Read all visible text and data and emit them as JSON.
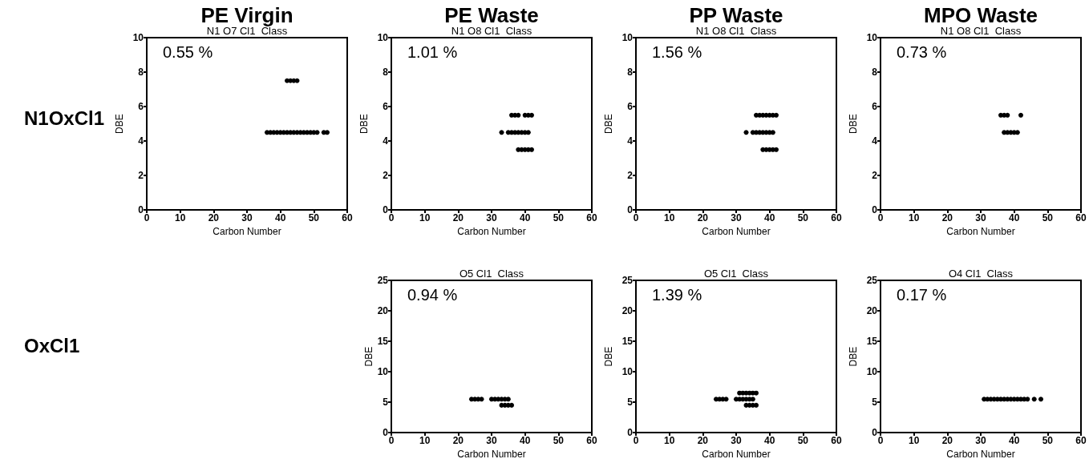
{
  "chart_data": [
    {
      "type": "scatter",
      "marker": "circle",
      "title": "PE Virgin",
      "subtitle": "N1 O7 Cl1  Class",
      "annotations": [
        "0.55 %",
        "N1OxCl1"
      ],
      "xlabel": "Carbon Number",
      "ylabel": "DBE",
      "xlim": [
        0,
        60
      ],
      "xticks": [
        0,
        10,
        20,
        30,
        40,
        50,
        60
      ],
      "ylim": [
        0,
        10
      ],
      "yticks": [
        0,
        2,
        4,
        6,
        8,
        10
      ],
      "series": [
        {
          "color": "#000000",
          "x": [
            36,
            37,
            38,
            39,
            40,
            41,
            42,
            43,
            44,
            45,
            46,
            47,
            48,
            49,
            50,
            51,
            53,
            54,
            42,
            43,
            44,
            45
          ],
          "values": [
            4.5,
            4.5,
            4.5,
            4.5,
            4.5,
            4.5,
            4.5,
            4.5,
            4.5,
            4.5,
            4.5,
            4.5,
            4.5,
            4.5,
            4.5,
            4.5,
            4.5,
            4.5,
            7.5,
            7.5,
            7.5,
            7.5
          ]
        }
      ]
    },
    {
      "type": "scatter",
      "marker": "circle",
      "title": "PE Waste",
      "subtitle": "N1 O8 Cl1  Class",
      "annotations": [
        "1.01 %"
      ],
      "xlabel": "Carbon Number",
      "ylabel": "DBE",
      "xlim": [
        0,
        60
      ],
      "xticks": [
        0,
        10,
        20,
        30,
        40,
        50,
        60
      ],
      "ylim": [
        0,
        10
      ],
      "yticks": [
        0,
        2,
        4,
        6,
        8,
        10
      ],
      "series": [
        {
          "color": "#000000",
          "x": [
            36,
            37,
            38,
            40,
            41,
            42,
            33,
            35,
            36,
            37,
            38,
            39,
            40,
            41,
            38,
            39,
            40,
            41,
            42
          ],
          "values": [
            5.5,
            5.5,
            5.5,
            5.5,
            5.5,
            5.5,
            4.5,
            4.5,
            4.5,
            4.5,
            4.5,
            4.5,
            4.5,
            4.5,
            3.5,
            3.5,
            3.5,
            3.5,
            3.5
          ]
        }
      ]
    },
    {
      "type": "scatter",
      "marker": "circle",
      "title": "PP Waste",
      "subtitle": "N1 O8 Cl1  Class",
      "annotations": [
        "1.56 %"
      ],
      "xlabel": "Carbon Number",
      "ylabel": "DBE",
      "xlim": [
        0,
        60
      ],
      "xticks": [
        0,
        10,
        20,
        30,
        40,
        50,
        60
      ],
      "ylim": [
        0,
        10
      ],
      "yticks": [
        0,
        2,
        4,
        6,
        8,
        10
      ],
      "series": [
        {
          "color": "#000000",
          "x": [
            36,
            37,
            38,
            39,
            40,
            41,
            42,
            33,
            35,
            36,
            37,
            38,
            39,
            40,
            41,
            38,
            39,
            40,
            41,
            42
          ],
          "values": [
            5.5,
            5.5,
            5.5,
            5.5,
            5.5,
            5.5,
            5.5,
            4.5,
            4.5,
            4.5,
            4.5,
            4.5,
            4.5,
            4.5,
            4.5,
            3.5,
            3.5,
            3.5,
            3.5,
            3.5
          ]
        }
      ]
    },
    {
      "type": "scatter",
      "marker": "circle",
      "title": "MPO Waste",
      "subtitle": "N1 O8 Cl1  Class",
      "annotations": [
        "0.73 %"
      ],
      "xlabel": "Carbon Number",
      "ylabel": "DBE",
      "xlim": [
        0,
        60
      ],
      "xticks": [
        0,
        10,
        20,
        30,
        40,
        50,
        60
      ],
      "ylim": [
        0,
        10
      ],
      "yticks": [
        0,
        2,
        4,
        6,
        8,
        10
      ],
      "series": [
        {
          "color": "#000000",
          "x": [
            36,
            37,
            38,
            42,
            37,
            38,
            39,
            40,
            41
          ],
          "values": [
            5.5,
            5.5,
            5.5,
            5.5,
            4.5,
            4.5,
            4.5,
            4.5,
            4.5
          ]
        }
      ]
    },
    {
      "type": "scatter",
      "marker": "circle",
      "subtitle": "O5 Cl1  Class",
      "annotations": [
        "0.94 %",
        "OxCl1"
      ],
      "xlabel": "Carbon Number",
      "ylabel": "DBE",
      "xlim": [
        0,
        60
      ],
      "xticks": [
        0,
        10,
        20,
        30,
        40,
        50,
        60
      ],
      "ylim": [
        0,
        25
      ],
      "yticks": [
        0,
        5,
        10,
        15,
        20,
        25
      ],
      "series": [
        {
          "color": "#000000",
          "x": [
            24,
            25,
            26,
            27,
            30,
            31,
            32,
            33,
            34,
            35,
            33,
            34,
            35,
            36
          ],
          "values": [
            5.5,
            5.5,
            5.5,
            5.5,
            5.5,
            5.5,
            5.5,
            5.5,
            5.5,
            5.5,
            4.5,
            4.5,
            4.5,
            4.5
          ]
        }
      ]
    },
    {
      "type": "scatter",
      "marker": "circle",
      "subtitle": "O5 Cl1  Class",
      "annotations": [
        "1.39 %"
      ],
      "xlabel": "Carbon Number",
      "ylabel": "DBE",
      "xlim": [
        0,
        60
      ],
      "xticks": [
        0,
        10,
        20,
        30,
        40,
        50,
        60
      ],
      "ylim": [
        0,
        25
      ],
      "yticks": [
        0,
        5,
        10,
        15,
        20,
        25
      ],
      "series": [
        {
          "color": "#000000",
          "x": [
            31,
            32,
            33,
            34,
            35,
            36,
            24,
            25,
            26,
            27,
            30,
            31,
            32,
            33,
            34,
            35,
            33,
            34,
            35,
            36
          ],
          "values": [
            6.5,
            6.5,
            6.5,
            6.5,
            6.5,
            6.5,
            5.5,
            5.5,
            5.5,
            5.5,
            5.5,
            5.5,
            5.5,
            5.5,
            5.5,
            5.5,
            4.5,
            4.5,
            4.5,
            4.5
          ]
        }
      ]
    },
    {
      "type": "scatter",
      "marker": "circle",
      "subtitle": "O4 Cl1  Class",
      "annotations": [
        "0.17 %"
      ],
      "xlabel": "Carbon Number",
      "ylabel": "DBE",
      "xlim": [
        0,
        60
      ],
      "xticks": [
        0,
        10,
        20,
        30,
        40,
        50,
        60
      ],
      "ylim": [
        0,
        25
      ],
      "yticks": [
        0,
        5,
        10,
        15,
        20,
        25
      ],
      "series": [
        {
          "color": "#000000",
          "x": [
            31,
            32,
            33,
            34,
            35,
            36,
            37,
            38,
            39,
            40,
            41,
            42,
            43,
            44,
            46,
            48
          ],
          "values": [
            5.5,
            5.5,
            5.5,
            5.5,
            5.5,
            5.5,
            5.5,
            5.5,
            5.5,
            5.5,
            5.5,
            5.5,
            5.5,
            5.5,
            5.5,
            5.5
          ]
        }
      ]
    }
  ]
}
